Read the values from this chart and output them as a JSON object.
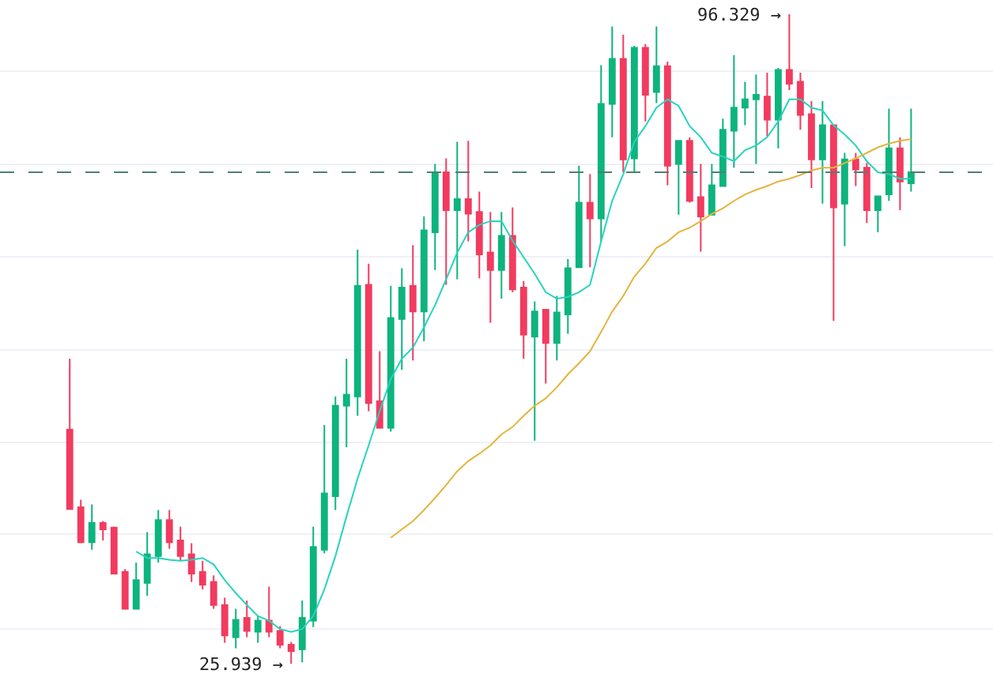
{
  "chart_data": {
    "type": "candlestick",
    "categories": [
      null,
      null,
      null,
      null,
      null,
      null,
      null,
      null,
      null,
      null,
      null,
      null,
      null,
      null,
      null,
      null,
      null,
      null,
      null,
      null,
      null,
      null,
      null,
      null,
      null,
      null,
      null,
      null,
      null,
      null,
      null,
      null,
      null,
      null,
      null,
      null,
      null,
      null,
      null,
      null,
      null,
      null,
      null,
      null,
      null,
      null,
      null,
      null,
      null,
      null,
      null,
      null,
      null,
      null,
      null,
      null,
      null,
      null,
      null,
      null,
      null,
      null,
      null,
      null,
      null,
      null,
      null,
      null,
      null,
      null,
      null,
      null,
      null,
      null,
      null,
      null,
      null
    ],
    "ohlc": [
      [
        51.3,
        59.0,
        42.7,
        42.7
      ],
      [
        42.9,
        43.7,
        39.0,
        39.1
      ],
      [
        39.1,
        43.2,
        38.3,
        41.2
      ],
      [
        41.2,
        41.4,
        39.3,
        40.5
      ],
      [
        40.7,
        40.8,
        35.7,
        35.7
      ],
      [
        35.9,
        36.2,
        31.9,
        31.9
      ],
      [
        31.9,
        36.9,
        31.9,
        35.0
      ],
      [
        34.7,
        40.2,
        33.3,
        37.8
      ],
      [
        37.6,
        42.6,
        36.9,
        41.5
      ],
      [
        41.5,
        42.6,
        38.4,
        39.1
      ],
      [
        39.3,
        40.8,
        37.1,
        37.6
      ],
      [
        37.8,
        39.0,
        34.8,
        35.7
      ],
      [
        35.9,
        37.1,
        34.0,
        34.5
      ],
      [
        34.8,
        35.5,
        31.9,
        32.3
      ],
      [
        32.3,
        33.1,
        28.2,
        29.0
      ],
      [
        28.8,
        31.9,
        27.6,
        30.7
      ],
      [
        30.9,
        32.8,
        28.8,
        29.5
      ],
      [
        29.4,
        31.1,
        28.2,
        30.6
      ],
      [
        30.6,
        34.3,
        28.8,
        29.4
      ],
      [
        29.5,
        30.0,
        27.6,
        28.0
      ],
      [
        28.0,
        28.3,
        25.939,
        27.3
      ],
      [
        27.5,
        32.8,
        26.1,
        30.9
      ],
      [
        30.6,
        40.8,
        29.9,
        38.6
      ],
      [
        38.3,
        51.8,
        37.9,
        44.4
      ],
      [
        44.1,
        54.9,
        42.6,
        53.9
      ],
      [
        53.9,
        59.0,
        49.4,
        55.1
      ],
      [
        54.9,
        70.8,
        52.8,
        66.9
      ],
      [
        67.0,
        69.3,
        53.3,
        54.2
      ],
      [
        54.4,
        59.8,
        51.5,
        51.5
      ],
      [
        51.5,
        66.9,
        51.1,
        63.4
      ],
      [
        63.3,
        68.8,
        57.8,
        66.7
      ],
      [
        66.9,
        71.3,
        58.8,
        64.1
      ],
      [
        64.1,
        74.4,
        60.9,
        72.9
      ],
      [
        72.7,
        80.1,
        68.6,
        79.2
      ],
      [
        79.2,
        80.7,
        67.0,
        75.1
      ],
      [
        75.1,
        82.5,
        67.6,
        76.3
      ],
      [
        76.3,
        82.6,
        71.7,
        74.7
      ],
      [
        74.9,
        77.1,
        67.7,
        70.3
      ],
      [
        70.5,
        74.9,
        62.9,
        68.6
      ],
      [
        68.6,
        74.9,
        65.5,
        72.3
      ],
      [
        72.3,
        75.4,
        66.2,
        66.5
      ],
      [
        66.7,
        67.4,
        59.0,
        61.6
      ],
      [
        61.4,
        65.2,
        50.1,
        64.1
      ],
      [
        64.3,
        64.3,
        56.3,
        60.7
      ],
      [
        60.7,
        65.8,
        58.8,
        64.0
      ],
      [
        63.8,
        69.8,
        61.7,
        68.8
      ],
      [
        68.9,
        79.9,
        68.9,
        75.9
      ],
      [
        75.9,
        79.0,
        68.9,
        74.2
      ],
      [
        74.2,
        90.8,
        71.7,
        86.6
      ],
      [
        86.6,
        95.0,
        83.0,
        91.5
      ],
      [
        91.5,
        94.1,
        79.2,
        80.6
      ],
      [
        80.7,
        92.9,
        79.2,
        92.7
      ],
      [
        92.7,
        93.1,
        84.7,
        87.6
      ],
      [
        87.9,
        95.0,
        86.7,
        90.7
      ],
      [
        90.7,
        91.2,
        77.8,
        79.9
      ],
      [
        80.1,
        82.6,
        74.6,
        82.6
      ],
      [
        82.6,
        83.0,
        75.9,
        76.1
      ],
      [
        76.5,
        80.1,
        70.6,
        74.4
      ],
      [
        74.6,
        80.1,
        74.6,
        77.8
      ],
      [
        77.7,
        85.0,
        77.7,
        83.8
      ],
      [
        83.7,
        91.9,
        79.7,
        86.2
      ],
      [
        86.2,
        89.0,
        84.3,
        87.1
      ],
      [
        87.1,
        89.8,
        80.1,
        87.6
      ],
      [
        87.4,
        90.0,
        83.1,
        84.9
      ],
      [
        84.9,
        90.5,
        81.8,
        90.3
      ],
      [
        90.3,
        96.329,
        88.1,
        88.8
      ],
      [
        89.0,
        90.0,
        83.8,
        85.4
      ],
      [
        85.5,
        86.9,
        77.5,
        80.6
      ],
      [
        80.6,
        86.9,
        75.8,
        84.3
      ],
      [
        84.3,
        84.3,
        63.1,
        75.4
      ],
      [
        75.8,
        81.3,
        71.2,
        80.6
      ],
      [
        80.6,
        81.3,
        77.7,
        79.5
      ],
      [
        79.7,
        80.2,
        73.7,
        75.1
      ],
      [
        75.1,
        76.6,
        72.7,
        76.6
      ],
      [
        76.8,
        86.1,
        76.1,
        81.8
      ],
      [
        81.8,
        83.0,
        75.1,
        78.2
      ],
      [
        78.0,
        86.1,
        77.1,
        79.2
      ]
    ],
    "colors": [
      "#f23b5f",
      "#f23b5f",
      "#0db47e",
      "#f23b5f",
      "#f23b5f",
      "#f23b5f",
      "#0db47e",
      "#0db47e",
      "#0db47e",
      "#f23b5f",
      "#f23b5f",
      "#f23b5f",
      "#f23b5f",
      "#f23b5f",
      "#f23b5f",
      "#0db47e",
      "#f23b5f",
      "#0db47e",
      "#f23b5f",
      "#f23b5f",
      "#f23b5f",
      "#0db47e",
      "#0db47e",
      "#0db47e",
      "#0db47e",
      "#0db47e",
      "#0db47e",
      "#f23b5f",
      "#f23b5f",
      "#0db47e",
      "#0db47e",
      "#f23b5f",
      "#0db47e",
      "#0db47e",
      "#f23b5f",
      "#0db47e",
      "#f23b5f",
      "#f23b5f",
      "#f23b5f",
      "#0db47e",
      "#f23b5f",
      "#f23b5f",
      "#0db47e",
      "#f23b5f",
      "#0db47e",
      "#0db47e",
      "#0db47e",
      "#f23b5f",
      "#0db47e",
      "#0db47e",
      "#f23b5f",
      "#0db47e",
      "#f23b5f",
      "#0db47e",
      "#f23b5f",
      "#0db47e",
      "#f23b5f",
      "#f23b5f",
      "#0db47e",
      "#0db47e",
      "#0db47e",
      "#0db47e",
      "#0db47e",
      "#f23b5f",
      "#0db47e",
      "#f23b5f",
      "#f23b5f",
      "#f23b5f",
      "#0db47e",
      "#f23b5f",
      "#0db47e",
      "#f23b5f",
      "#f23b5f",
      "#0db47e",
      "#0db47e",
      "#f23b5f",
      "#0db47e"
    ],
    "series": [
      {
        "type": "line",
        "color": "#26d3be",
        "values": [
          null,
          null,
          null,
          null,
          null,
          null,
          38.1,
          37.4,
          37.4,
          37.2,
          37.1,
          37.2,
          37.4,
          36.7,
          35.0,
          33.6,
          32.3,
          31.1,
          30.6,
          29.7,
          29.4,
          29.7,
          31.1,
          34.0,
          37.6,
          41.9,
          46.0,
          49.6,
          53.3,
          56.8,
          59.0,
          60.2,
          62.4,
          64.8,
          67.6,
          70.5,
          72.7,
          73.5,
          73.9,
          73.9,
          71.8,
          70.0,
          68.2,
          66.2,
          65.5,
          65.7,
          66.2,
          67.0,
          71.7,
          76.1,
          79.0,
          82.5,
          84.2,
          86.2,
          87.1,
          86.4,
          84.2,
          83.0,
          81.3,
          80.9,
          80.4,
          81.6,
          82.1,
          83.0,
          84.7,
          87.1,
          87.1,
          86.2,
          85.9,
          84.3,
          83.3,
          82.1,
          80.4,
          79.2,
          79.0,
          78.5,
          78.5
        ]
      },
      {
        "type": "line",
        "color": "#e2b53e",
        "values": [
          null,
          null,
          null,
          null,
          null,
          null,
          null,
          null,
          null,
          null,
          null,
          null,
          null,
          null,
          null,
          null,
          null,
          null,
          null,
          null,
          null,
          null,
          null,
          null,
          null,
          null,
          null,
          null,
          null,
          39.6,
          40.5,
          41.4,
          42.6,
          43.9,
          45.3,
          46.8,
          47.9,
          48.7,
          49.6,
          50.8,
          51.6,
          52.8,
          53.9,
          54.7,
          55.9,
          57.3,
          58.5,
          59.8,
          61.9,
          64.1,
          65.8,
          67.9,
          69.3,
          71.0,
          71.7,
          72.7,
          73.2,
          73.9,
          74.7,
          75.3,
          76.1,
          76.8,
          77.3,
          77.7,
          78.2,
          78.5,
          78.9,
          79.4,
          79.7,
          79.7,
          80.2,
          80.7,
          81.3,
          81.9,
          82.3,
          82.6,
          82.8
        ]
      }
    ],
    "ylim": [
      23.2,
      97.87
    ],
    "yticks": [
      {
        "value": 29.7,
        "label": null
      },
      {
        "value": 40.0,
        "label": null
      },
      {
        "value": 49.9,
        "label": null
      },
      {
        "value": 59.9,
        "label": null
      },
      {
        "value": 70.0,
        "label": null
      },
      {
        "value": 80.1,
        "label": null
      },
      {
        "value": 90.2,
        "label": null
      }
    ],
    "ref_lines": [
      {
        "axis": "y",
        "value": 79.2,
        "color": "#4f7f70",
        "line_style": "dashed"
      }
    ],
    "annotations": [
      "96.329 →",
      "25.939 →"
    ],
    "grid": "y"
  }
}
